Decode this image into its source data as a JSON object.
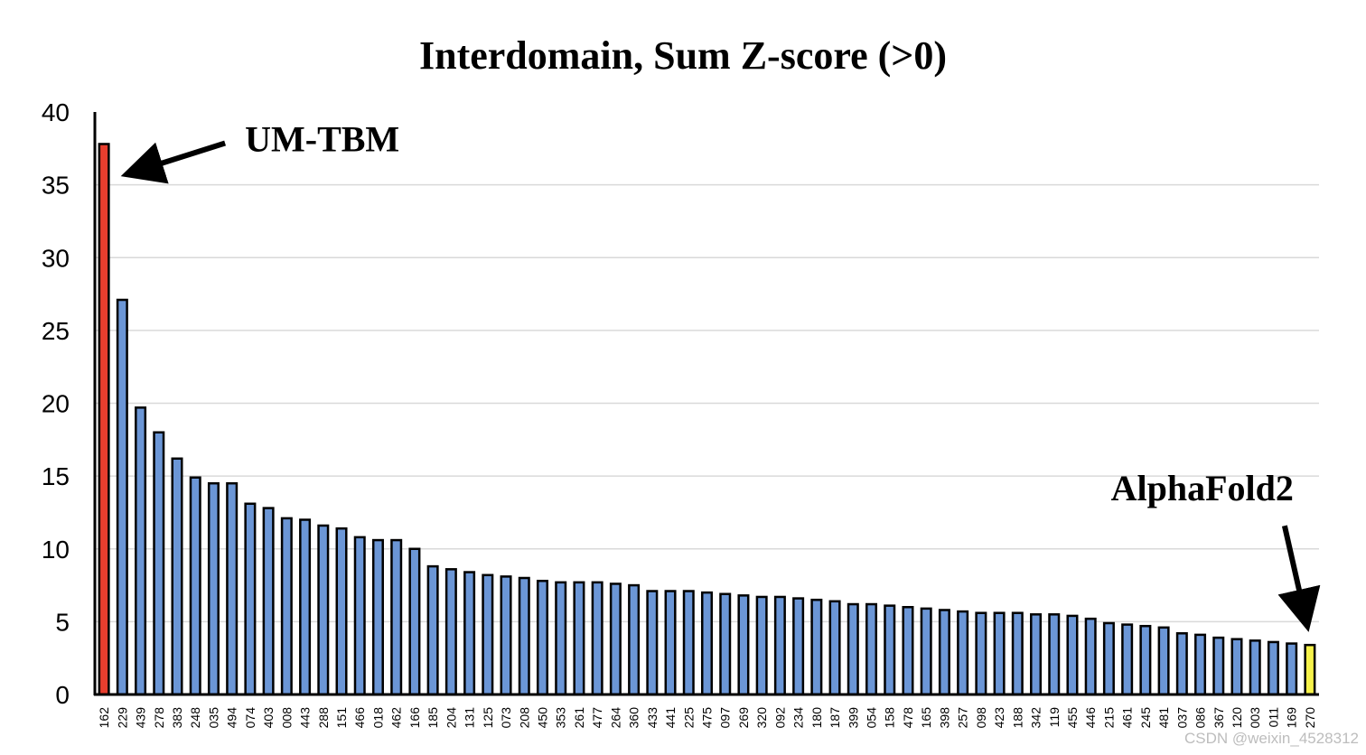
{
  "chart_data": {
    "type": "bar",
    "title": "Interdomain, Sum Z-score (>0)",
    "xlabel": "",
    "ylabel": "",
    "ylim": [
      0,
      40
    ],
    "yticks": [
      0,
      5,
      10,
      15,
      20,
      25,
      30,
      35,
      40
    ],
    "grid": true,
    "categories": [
      "162",
      "229",
      "439",
      "278",
      "383",
      "248",
      "035",
      "494",
      "074",
      "403",
      "008",
      "443",
      "288",
      "151",
      "466",
      "018",
      "462",
      "166",
      "185",
      "204",
      "131",
      "125",
      "073",
      "208",
      "450",
      "353",
      "261",
      "477",
      "264",
      "360",
      "433",
      "441",
      "225",
      "475",
      "097",
      "269",
      "320",
      "092",
      "234",
      "180",
      "187",
      "399",
      "054",
      "158",
      "478",
      "165",
      "398",
      "257",
      "098",
      "423",
      "188",
      "342",
      "119",
      "455",
      "446",
      "215",
      "461",
      "245",
      "481",
      "037",
      "086",
      "367",
      "120",
      "003",
      "011",
      "169",
      "270"
    ],
    "values": [
      37.8,
      27.1,
      19.7,
      18.0,
      16.2,
      14.9,
      14.5,
      14.5,
      13.1,
      12.8,
      12.1,
      12.0,
      11.6,
      11.4,
      10.8,
      10.6,
      10.6,
      10.0,
      8.8,
      8.6,
      8.4,
      8.2,
      8.1,
      8.0,
      7.8,
      7.7,
      7.7,
      7.7,
      7.6,
      7.5,
      7.1,
      7.1,
      7.1,
      7.0,
      6.9,
      6.8,
      6.7,
      6.7,
      6.6,
      6.5,
      6.4,
      6.2,
      6.2,
      6.1,
      6.0,
      5.9,
      5.8,
      5.7,
      5.6,
      5.6,
      5.6,
      5.5,
      5.5,
      5.4,
      5.2,
      4.9,
      4.8,
      4.7,
      4.6,
      4.2,
      4.1,
      3.9,
      3.8,
      3.7,
      3.6,
      3.5,
      3.4
    ],
    "bar_colors": {
      "default": "#6b96d6",
      "162": "#e83e2e",
      "270": "#f6f24a"
    },
    "annotations": [
      {
        "text": "UM-TBM",
        "target": "162"
      },
      {
        "text": "AlphaFold2",
        "target": "270"
      }
    ]
  },
  "watermark": "CSDN @weixin_4528312"
}
